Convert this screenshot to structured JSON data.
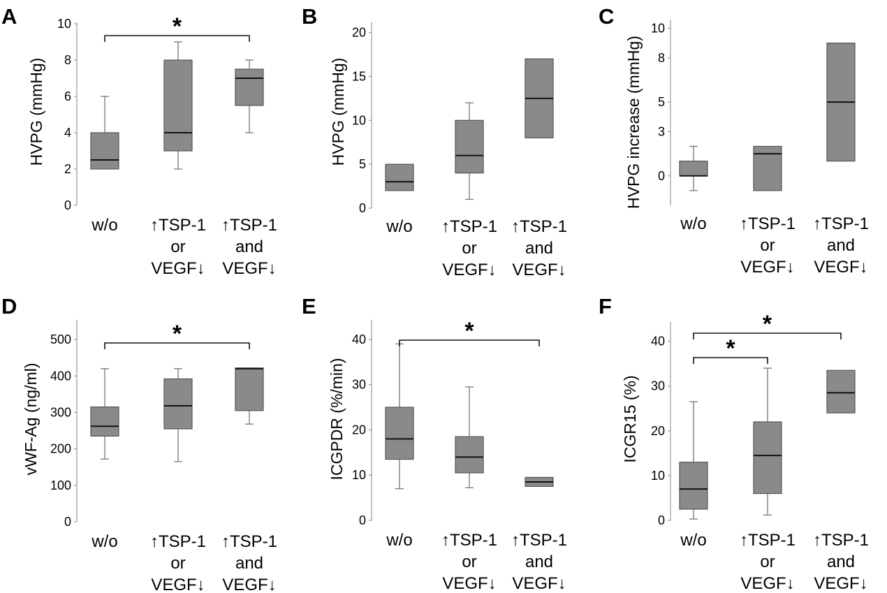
{
  "chart_data": [
    {
      "type": "box",
      "panel": "A",
      "ylabel": "HVPG (mmHg)",
      "ylim": [
        0,
        10
      ],
      "yticks": [
        0,
        2,
        4,
        6,
        8,
        10
      ],
      "categories": [
        [
          "w/o"
        ],
        [
          "↑TSP-1",
          "or",
          "VEGF↓"
        ],
        [
          "↑TSP-1",
          "and",
          "VEGF↓"
        ]
      ],
      "boxes": [
        {
          "min": 2,
          "q1": 2,
          "median": 2.5,
          "q3": 4,
          "max": 6
        },
        {
          "min": 2,
          "q1": 3,
          "median": 4,
          "q3": 8,
          "max": 9
        },
        {
          "min": 4,
          "q1": 5.5,
          "median": 7,
          "q3": 7.5,
          "max": 8
        }
      ],
      "significance": [
        {
          "from": 0,
          "to": 2,
          "label": "*"
        }
      ]
    },
    {
      "type": "box",
      "panel": "B",
      "ylabel": "HVPG (mmHg)",
      "ylim": [
        0,
        21
      ],
      "yticks": [
        0,
        5,
        10,
        15,
        20
      ],
      "categories": [
        [
          "w/o"
        ],
        [
          "↑TSP-1",
          "or",
          "VEGF↓"
        ],
        [
          "↑TSP-1",
          "and",
          "VEGF↓"
        ]
      ],
      "boxes": [
        {
          "min": 2,
          "q1": 2,
          "median": 3,
          "q3": 5,
          "max": 5
        },
        {
          "min": 1,
          "q1": 4,
          "median": 6,
          "q3": 10,
          "max": 12
        },
        {
          "min": 8,
          "q1": 8,
          "median": 12.5,
          "q3": 17,
          "max": 17
        }
      ],
      "significance": []
    },
    {
      "type": "box",
      "panel": "C",
      "ylabel": "HVPG  increase (mmHg)",
      "ylim": [
        -2,
        10.5
      ],
      "yticks": [
        0,
        3,
        5,
        8,
        10
      ],
      "categories": [
        [
          "w/o"
        ],
        [
          "↑TSP-1",
          "or",
          "VEGF↓"
        ],
        [
          "↑TSP-1",
          "and",
          "VEGF↓"
        ]
      ],
      "boxes": [
        {
          "min": -1,
          "q1": 0,
          "median": 0,
          "q3": 1,
          "max": 2
        },
        {
          "min": -1,
          "q1": -1,
          "median": 1.5,
          "q3": 2,
          "max": 2
        },
        {
          "min": 1,
          "q1": 1,
          "median": 5,
          "q3": 9,
          "max": 9
        }
      ],
      "significance": []
    },
    {
      "type": "box",
      "panel": "D",
      "ylabel": "vWF-Ag (ng/ml)",
      "ylim": [
        0,
        550
      ],
      "yticks": [
        0,
        100,
        200,
        300,
        400,
        500
      ],
      "categories": [
        [
          "w/o"
        ],
        [
          "↑TSP-1",
          "or",
          "VEGF↓"
        ],
        [
          "↑TSP-1",
          "and",
          "VEGF↓"
        ]
      ],
      "boxes": [
        {
          "min": 172,
          "q1": 235,
          "median": 262,
          "q3": 315,
          "max": 420
        },
        {
          "min": 165,
          "q1": 255,
          "median": 318,
          "q3": 392,
          "max": 420
        },
        {
          "min": 268,
          "q1": 305,
          "median": 420,
          "q3": 422,
          "max": 422
        }
      ],
      "significance": [
        {
          "from": 0,
          "to": 2,
          "label": "*"
        }
      ]
    },
    {
      "type": "box",
      "panel": "E",
      "ylabel": "ICGPDR (%/min)",
      "ylim": [
        0,
        44
      ],
      "yticks": [
        0,
        10,
        20,
        30,
        40
      ],
      "categories": [
        [
          "w/o"
        ],
        [
          "↑TSP-1",
          "or",
          "VEGF↓"
        ],
        [
          "↑TSP-1",
          "and",
          "VEGF↓"
        ]
      ],
      "boxes": [
        {
          "min": 7,
          "q1": 13.5,
          "median": 18,
          "q3": 25,
          "max": 39
        },
        {
          "min": 7.2,
          "q1": 10.5,
          "median": 14,
          "q3": 18.5,
          "max": 29.5
        },
        {
          "min": 7.5,
          "q1": 7.5,
          "median": 8.5,
          "q3": 9.5,
          "max": 9.5
        }
      ],
      "significance": [
        {
          "from": 0,
          "to": 2,
          "label": "*"
        }
      ]
    },
    {
      "type": "box",
      "panel": "F",
      "ylabel": "ICGR15 (%)",
      "ylim": [
        0,
        44
      ],
      "yticks": [
        0,
        10,
        20,
        30,
        40
      ],
      "categories": [
        [
          "w/o"
        ],
        [
          "↑TSP-1",
          "or",
          "VEGF↓"
        ],
        [
          "↑TSP-1",
          "and",
          "VEGF↓"
        ]
      ],
      "boxes": [
        {
          "min": 0.3,
          "q1": 2.5,
          "median": 7,
          "q3": 13,
          "max": 26.5
        },
        {
          "min": 1.2,
          "q1": 6,
          "median": 14.5,
          "q3": 22,
          "max": 34
        },
        {
          "min": 24,
          "q1": 24,
          "median": 28.5,
          "q3": 33.5,
          "max": 33.5
        }
      ],
      "significance": [
        {
          "from": 0,
          "to": 2,
          "label": "*"
        },
        {
          "from": 0,
          "to": 1,
          "label": "*"
        }
      ]
    }
  ]
}
